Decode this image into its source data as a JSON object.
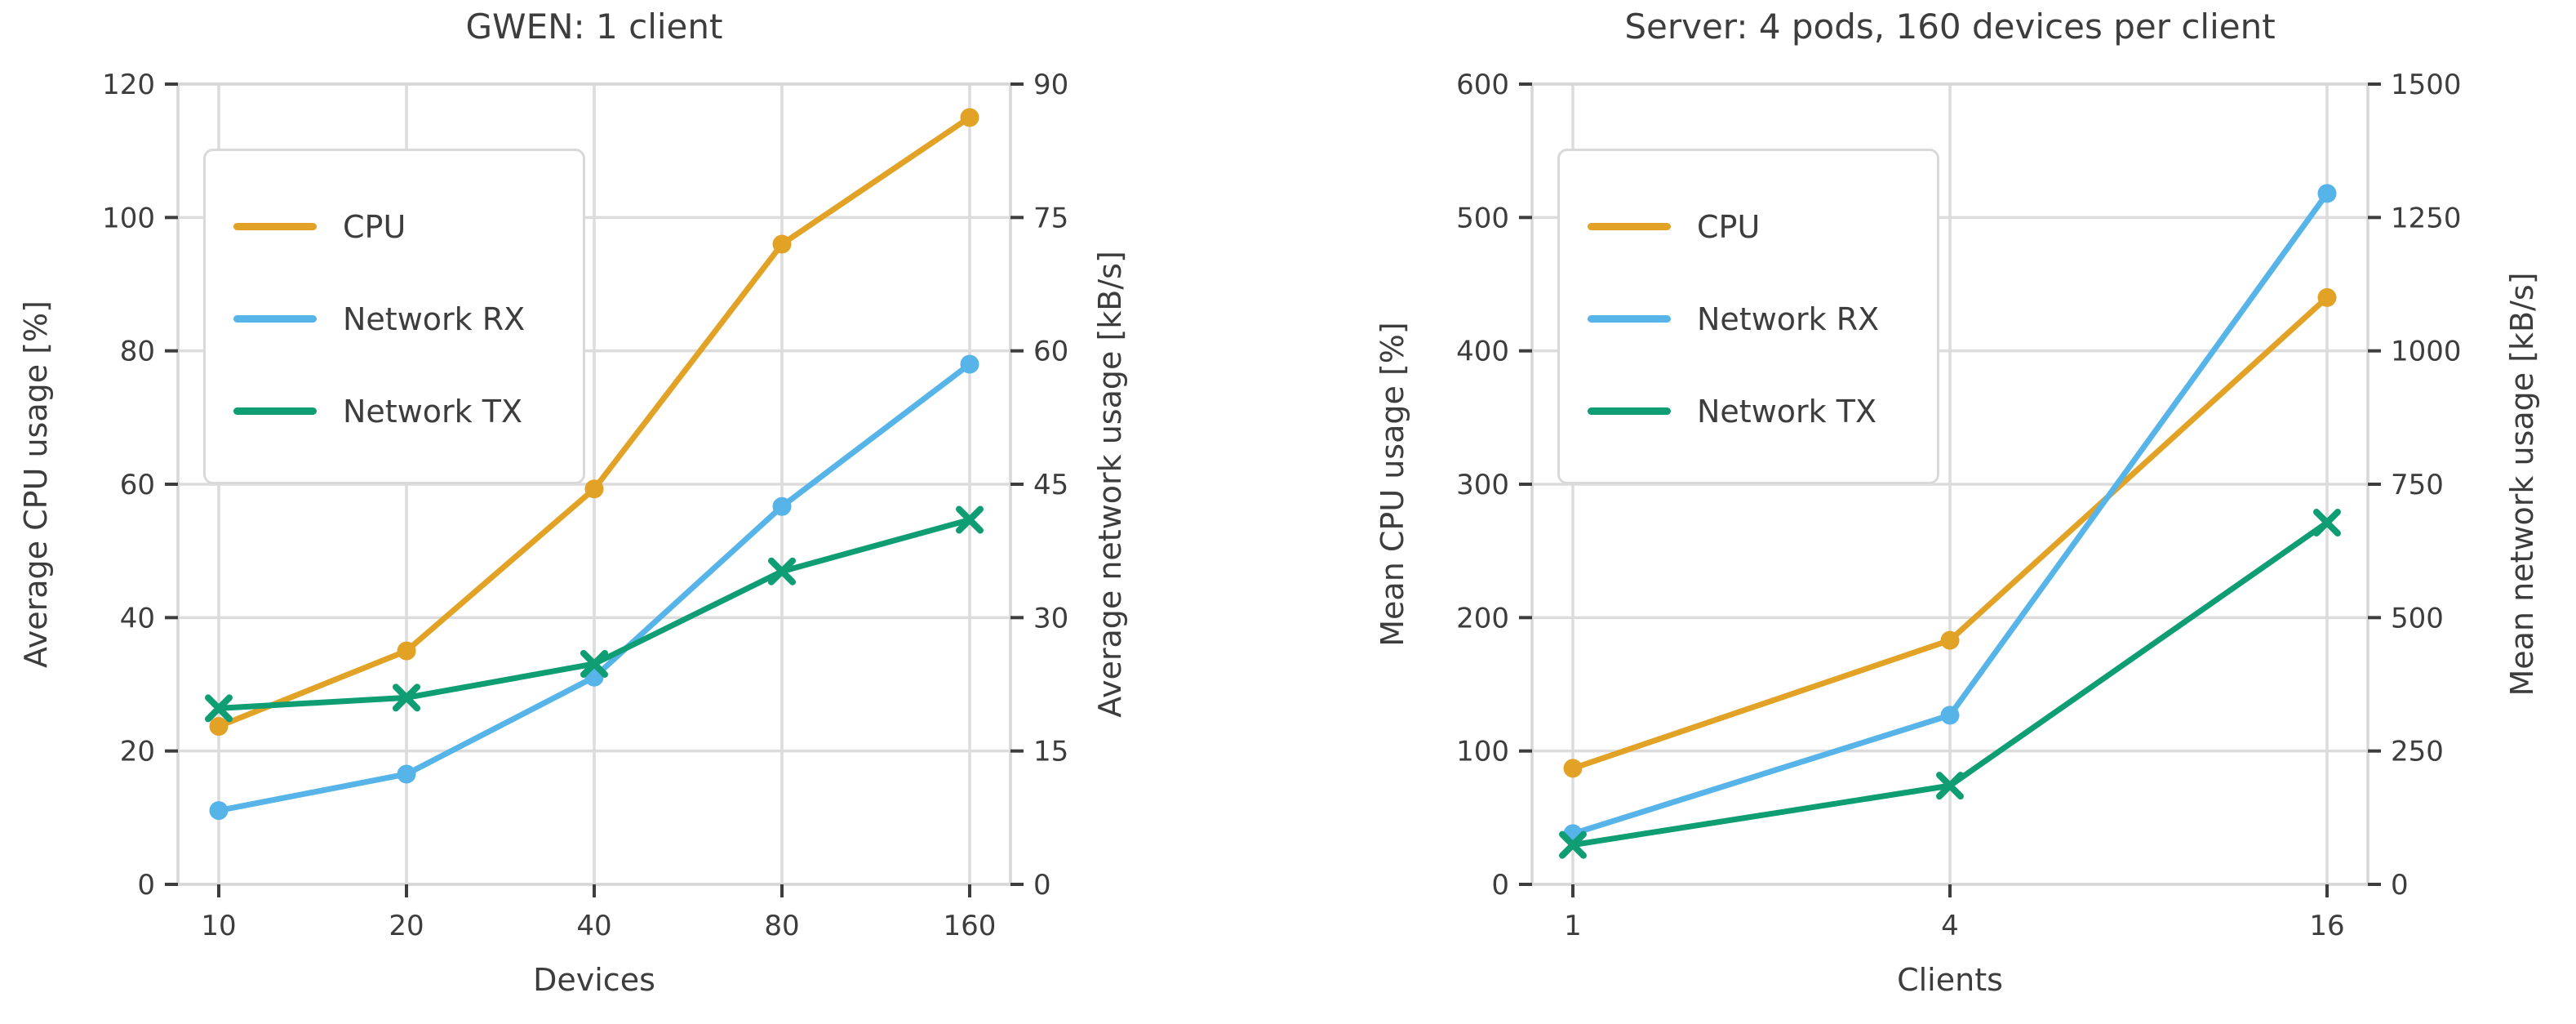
{
  "figure": {
    "background": "#ffffff"
  },
  "colors": {
    "cpu": "#e2a226",
    "network_rx": "#56b4e9",
    "network_tx": "#0f9d73",
    "text": "#3d3d3d",
    "grid": "#dcdcdc",
    "spine": "#d7d7d7"
  },
  "chart_data": [
    {
      "type": "line",
      "title": "GWEN: 1 client",
      "xlabel": "Devices",
      "ylabel_left": "Average CPU usage [%]",
      "ylabel_right": "Average network usage [kB/s]",
      "categories": [
        "10",
        "20",
        "40",
        "80",
        "160"
      ],
      "y_left": {
        "min": 0,
        "max": 120,
        "tick_labels": [
          "0",
          "20",
          "40",
          "60",
          "80",
          "100",
          "120"
        ]
      },
      "y_right": {
        "min": 0,
        "max": 90,
        "tick_labels": [
          "0",
          "15",
          "30",
          "45",
          "60",
          "75",
          "90"
        ]
      },
      "grid": true,
      "legend_position": "upper-left",
      "series": [
        {
          "name": "CPU",
          "axis": "left",
          "unit": "%",
          "color_key": "cpu",
          "marker": "circle",
          "values": [
            23.7,
            35.0,
            59.3,
            96.0,
            115.0
          ]
        },
        {
          "name": "Network RX",
          "axis": "right",
          "unit": "kB/s",
          "color_key": "network_rx",
          "marker": "circle",
          "values": [
            8.3,
            12.4,
            23.3,
            42.5,
            58.5
          ]
        },
        {
          "name": "Network TX",
          "axis": "right",
          "unit": "kB/s",
          "color_key": "network_tx",
          "marker": "x",
          "values": [
            19.8,
            21.0,
            24.8,
            35.2,
            41.0
          ]
        }
      ]
    },
    {
      "type": "line",
      "title": "Server: 4 pods, 160 devices per client",
      "xlabel": "Clients",
      "ylabel_left": "Mean CPU usage [%]",
      "ylabel_right": "Mean network usage [kB/s]",
      "categories": [
        "1",
        "4",
        "16"
      ],
      "y_left": {
        "min": 0,
        "max": 600,
        "tick_labels": [
          "0",
          "100",
          "200",
          "300",
          "400",
          "500",
          "600"
        ]
      },
      "y_right": {
        "min": 0,
        "max": 1500,
        "tick_labels": [
          "0",
          "250",
          "500",
          "750",
          "1000",
          "1250",
          "1500"
        ]
      },
      "grid": true,
      "legend_position": "upper-left",
      "series": [
        {
          "name": "CPU",
          "axis": "left",
          "unit": "%",
          "color_key": "cpu",
          "marker": "circle",
          "values": [
            87,
            183,
            440
          ]
        },
        {
          "name": "Network RX",
          "axis": "right",
          "unit": "kB/s",
          "color_key": "network_rx",
          "marker": "circle",
          "values": [
            95,
            317,
            1295
          ]
        },
        {
          "name": "Network TX",
          "axis": "right",
          "unit": "kB/s",
          "color_key": "network_tx",
          "marker": "x",
          "values": [
            74,
            185,
            678
          ]
        }
      ]
    }
  ]
}
